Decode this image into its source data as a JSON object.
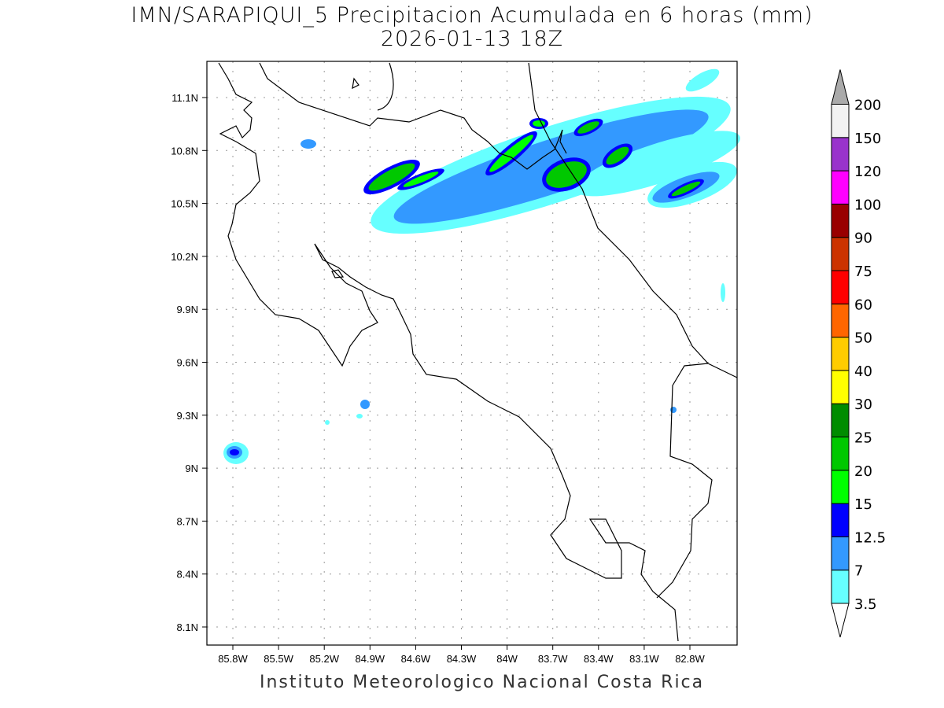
{
  "title": {
    "line1": "IMN/SARAPIQUI_5 Precipitacion Acumulada en 6 horas (mm)",
    "line2": "2026-01-13 18Z"
  },
  "footer": "Instituto Meteorologico Nacional Costa Rica",
  "axes": {
    "lon_ticks": [
      "85.8W",
      "85.5W",
      "85.2W",
      "84.9W",
      "84.6W",
      "84.3W",
      "84W",
      "83.7W",
      "83.4W",
      "83.1W",
      "82.8W"
    ],
    "lat_ticks": [
      "11.1N",
      "10.8N",
      "10.5N",
      "10.2N",
      "9.9N",
      "9.6N",
      "9.3N",
      "9N",
      "8.7N",
      "8.4N",
      "8.1N"
    ]
  },
  "colorbar": {
    "labels": [
      "3.5",
      "7",
      "12.5",
      "15",
      "20",
      "25",
      "30",
      "40",
      "50",
      "60",
      "75",
      "90",
      "100",
      "120",
      "150",
      "200"
    ],
    "colors": [
      "#66ffff",
      "#3399ff",
      "#0000ff",
      "#00ff00",
      "#00c800",
      "#008c00",
      "#ffff00",
      "#ffcc00",
      "#ff6600",
      "#ff0000",
      "#cc3300",
      "#990000",
      "#ff00ff",
      "#9933cc",
      "#f2f2f2"
    ],
    "over_color": "#aaaaaa",
    "under_color": "#ffffff"
  }
}
